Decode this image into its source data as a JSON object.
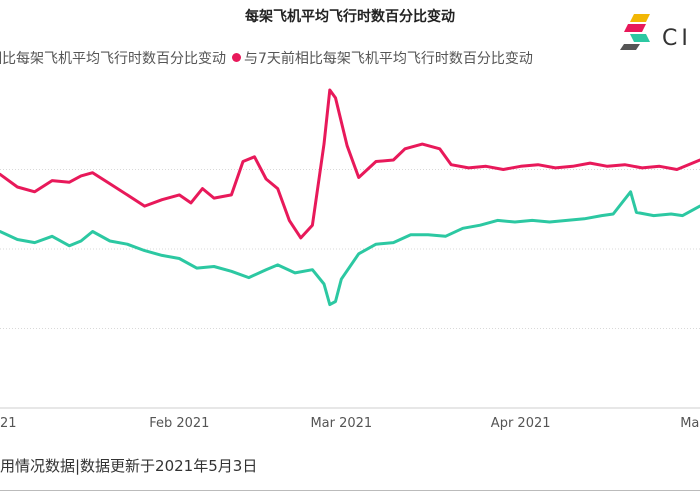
{
  "chart_data": {
    "type": "line",
    "title": "每架飞机平均飞行时数百分比变动",
    "x_axis": {
      "type": "date",
      "range": [
        "2021-01-01",
        "2021-05-02"
      ],
      "tick_labels": [
        {
          "label": "21",
          "date": "2021-01-01"
        },
        {
          "label": "Feb 2021",
          "date": "2021-02-01"
        },
        {
          "label": "Mar 2021",
          "date": "2021-03-01"
        },
        {
          "label": "Apr 2021",
          "date": "2021-04-01"
        },
        {
          "label": "Ma",
          "date": "2021-05-01"
        }
      ]
    },
    "y_axis": {
      "ylim": [
        -15,
        5
      ],
      "gridlines": [
        -10,
        -5,
        0
      ],
      "tick_labels_visible": false
    },
    "grid": true,
    "legend": {
      "placement": "top"
    },
    "series": [
      {
        "name": "年相比每架飞机平均飞行时数百分比变动",
        "color": "#2cc8a2",
        "points": [
          {
            "x": "2021-01-01",
            "y": -3.9
          },
          {
            "x": "2021-01-04",
            "y": -4.4
          },
          {
            "x": "2021-01-07",
            "y": -4.6
          },
          {
            "x": "2021-01-10",
            "y": -4.2
          },
          {
            "x": "2021-01-13",
            "y": -4.8
          },
          {
            "x": "2021-01-15",
            "y": -4.5
          },
          {
            "x": "2021-01-17",
            "y": -3.9
          },
          {
            "x": "2021-01-20",
            "y": -4.5
          },
          {
            "x": "2021-01-23",
            "y": -4.7
          },
          {
            "x": "2021-01-26",
            "y": -5.1
          },
          {
            "x": "2021-01-29",
            "y": -5.4
          },
          {
            "x": "2021-02-01",
            "y": -5.6
          },
          {
            "x": "2021-02-04",
            "y": -6.2
          },
          {
            "x": "2021-02-07",
            "y": -6.1
          },
          {
            "x": "2021-02-10",
            "y": -6.4
          },
          {
            "x": "2021-02-13",
            "y": -6.8
          },
          {
            "x": "2021-02-16",
            "y": -6.3
          },
          {
            "x": "2021-02-18",
            "y": -6.0
          },
          {
            "x": "2021-02-21",
            "y": -6.5
          },
          {
            "x": "2021-02-24",
            "y": -6.3
          },
          {
            "x": "2021-02-26",
            "y": -7.2
          },
          {
            "x": "2021-02-27",
            "y": -8.5
          },
          {
            "x": "2021-02-28",
            "y": -8.3
          },
          {
            "x": "2021-03-01",
            "y": -6.9
          },
          {
            "x": "2021-03-04",
            "y": -5.3
          },
          {
            "x": "2021-03-07",
            "y": -4.7
          },
          {
            "x": "2021-03-10",
            "y": -4.6
          },
          {
            "x": "2021-03-13",
            "y": -4.1
          },
          {
            "x": "2021-03-16",
            "y": -4.1
          },
          {
            "x": "2021-03-19",
            "y": -4.2
          },
          {
            "x": "2021-03-22",
            "y": -3.7
          },
          {
            "x": "2021-03-25",
            "y": -3.5
          },
          {
            "x": "2021-03-28",
            "y": -3.2
          },
          {
            "x": "2021-03-31",
            "y": -3.3
          },
          {
            "x": "2021-04-03",
            "y": -3.2
          },
          {
            "x": "2021-04-06",
            "y": -3.3
          },
          {
            "x": "2021-04-09",
            "y": -3.2
          },
          {
            "x": "2021-04-12",
            "y": -3.1
          },
          {
            "x": "2021-04-15",
            "y": -2.9
          },
          {
            "x": "2021-04-17",
            "y": -2.8
          },
          {
            "x": "2021-04-20",
            "y": -1.4
          },
          {
            "x": "2021-04-21",
            "y": -2.7
          },
          {
            "x": "2021-04-24",
            "y": -2.9
          },
          {
            "x": "2021-04-27",
            "y": -2.8
          },
          {
            "x": "2021-04-29",
            "y": -2.9
          },
          {
            "x": "2021-05-02",
            "y": -2.3
          }
        ]
      },
      {
        "name": "与7天前相比每架飞机平均飞行时数百分比变动",
        "color": "#e8195a",
        "points": [
          {
            "x": "2021-01-01",
            "y": -0.3
          },
          {
            "x": "2021-01-04",
            "y": -1.1
          },
          {
            "x": "2021-01-07",
            "y": -1.4
          },
          {
            "x": "2021-01-10",
            "y": -0.7
          },
          {
            "x": "2021-01-13",
            "y": -0.8
          },
          {
            "x": "2021-01-15",
            "y": -0.4
          },
          {
            "x": "2021-01-17",
            "y": -0.2
          },
          {
            "x": "2021-01-20",
            "y": -0.9
          },
          {
            "x": "2021-01-23",
            "y": -1.6
          },
          {
            "x": "2021-01-26",
            "y": -2.3
          },
          {
            "x": "2021-01-29",
            "y": -1.9
          },
          {
            "x": "2021-02-01",
            "y": -1.6
          },
          {
            "x": "2021-02-03",
            "y": -2.1
          },
          {
            "x": "2021-02-05",
            "y": -1.2
          },
          {
            "x": "2021-02-07",
            "y": -1.8
          },
          {
            "x": "2021-02-10",
            "y": -1.6
          },
          {
            "x": "2021-02-12",
            "y": 0.5
          },
          {
            "x": "2021-02-14",
            "y": 0.8
          },
          {
            "x": "2021-02-16",
            "y": -0.6
          },
          {
            "x": "2021-02-18",
            "y": -1.2
          },
          {
            "x": "2021-02-20",
            "y": -3.2
          },
          {
            "x": "2021-02-22",
            "y": -4.3
          },
          {
            "x": "2021-02-24",
            "y": -3.5
          },
          {
            "x": "2021-02-26",
            "y": 1.6
          },
          {
            "x": "2021-02-27",
            "y": 5.0
          },
          {
            "x": "2021-02-28",
            "y": 4.5
          },
          {
            "x": "2021-03-02",
            "y": 1.5
          },
          {
            "x": "2021-03-04",
            "y": -0.5
          },
          {
            "x": "2021-03-07",
            "y": 0.5
          },
          {
            "x": "2021-03-10",
            "y": 0.6
          },
          {
            "x": "2021-03-12",
            "y": 1.3
          },
          {
            "x": "2021-03-15",
            "y": 1.6
          },
          {
            "x": "2021-03-18",
            "y": 1.3
          },
          {
            "x": "2021-03-20",
            "y": 0.3
          },
          {
            "x": "2021-03-23",
            "y": 0.1
          },
          {
            "x": "2021-03-26",
            "y": 0.2
          },
          {
            "x": "2021-03-29",
            "y": 0.0
          },
          {
            "x": "2021-04-01",
            "y": 0.2
          },
          {
            "x": "2021-04-04",
            "y": 0.3
          },
          {
            "x": "2021-04-07",
            "y": 0.1
          },
          {
            "x": "2021-04-10",
            "y": 0.2
          },
          {
            "x": "2021-04-13",
            "y": 0.4
          },
          {
            "x": "2021-04-16",
            "y": 0.2
          },
          {
            "x": "2021-04-19",
            "y": 0.3
          },
          {
            "x": "2021-04-22",
            "y": 0.1
          },
          {
            "x": "2021-04-25",
            "y": 0.2
          },
          {
            "x": "2021-04-28",
            "y": 0.0
          },
          {
            "x": "2021-05-02",
            "y": 0.6
          }
        ]
      }
    ]
  },
  "legend_items": [
    {
      "label": "年相比每架飞机平均飞行时数百分比变动",
      "color": "#2cc8a2",
      "show_dot": false
    },
    {
      "label": "与7天前相比每架飞机平均飞行时数百分比变动",
      "color": "#e8195a",
      "show_dot": true
    }
  ],
  "logo": {
    "text": "CI",
    "colors": [
      "#f2b705",
      "#e8195a",
      "#2cc8a2"
    ]
  },
  "footer": {
    "source": "用情况数据|数据更新于2021年5月3日"
  }
}
